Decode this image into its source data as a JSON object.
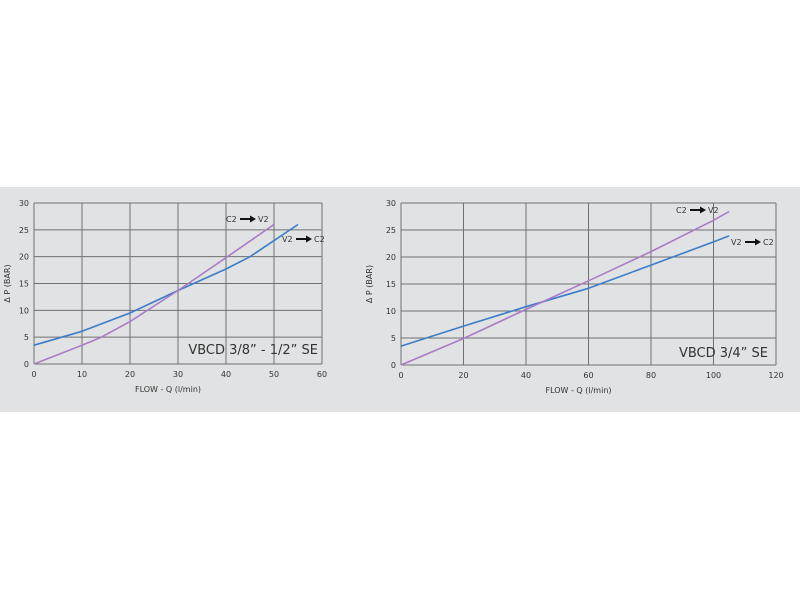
{
  "colors": {
    "panel": "#e1e2e3",
    "grid": "#707070",
    "series_a": "#3b7dc8",
    "series_b": "#a97cc6"
  },
  "chart_data": [
    {
      "type": "line",
      "title": "VBCD 3/8” - 1/2” SE",
      "xlabel": "FLOW - Q (l/min)",
      "ylabel": "Δ P (BAR)",
      "xlim": [
        0,
        60
      ],
      "ylim": [
        0,
        30
      ],
      "xticks": [
        0,
        10,
        20,
        30,
        40,
        50,
        60
      ],
      "yticks": [
        0,
        5,
        10,
        15,
        20,
        25,
        30
      ],
      "grid": true,
      "series": [
        {
          "name": "V2 → C2",
          "color": "#3b7dc8",
          "x": [
            0,
            10,
            20,
            30,
            40,
            45,
            50,
            55
          ],
          "y": [
            3.5,
            6.1,
            9.5,
            13.7,
            17.7,
            20,
            23,
            26
          ]
        },
        {
          "name": "C2 → V2",
          "color": "#a97cc6",
          "x": [
            0,
            10,
            14,
            20,
            30,
            40,
            50
          ],
          "y": [
            0,
            3.5,
            5,
            7.9,
            13.7,
            19.8,
            26
          ]
        }
      ]
    },
    {
      "type": "line",
      "title": "VBCD 3/4” SE",
      "xlabel": "FLOW - Q (l/min)",
      "ylabel": "Δ P (BAR)",
      "xlim": [
        0,
        120
      ],
      "ylim": [
        0,
        30
      ],
      "xticks": [
        0,
        20,
        40,
        60,
        80,
        100,
        120
      ],
      "yticks": [
        0,
        5,
        10,
        15,
        20,
        25,
        30
      ],
      "grid": true,
      "series": [
        {
          "name": "V2 → C2",
          "color": "#3b7dc8",
          "x": [
            0,
            20,
            40,
            60,
            80,
            100,
            105
          ],
          "y": [
            3.5,
            7.2,
            10.8,
            14.2,
            18.5,
            22.8,
            23.9
          ]
        },
        {
          "name": "C2 → V2",
          "color": "#a97cc6",
          "x": [
            0,
            20,
            40,
            60,
            80,
            100,
            105
          ],
          "y": [
            0,
            4.9,
            10.3,
            15.6,
            21,
            26.8,
            28.4
          ]
        }
      ]
    }
  ]
}
